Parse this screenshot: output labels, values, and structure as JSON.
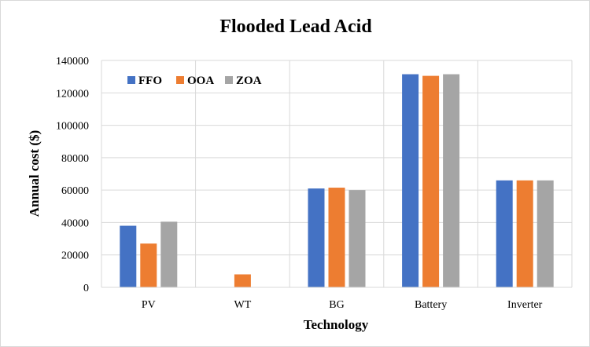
{
  "chart_data": {
    "type": "bar",
    "title": "Flooded Lead Acid",
    "xlabel": "Technology",
    "ylabel": "Annual cost ($)",
    "ylim": [
      0,
      140000
    ],
    "yticks": [
      0,
      20000,
      40000,
      60000,
      80000,
      100000,
      120000,
      140000
    ],
    "categories": [
      "PV",
      "WT",
      "BG",
      "Battery",
      "Inverter"
    ],
    "series": [
      {
        "name": "FFO",
        "color": "#4472c4",
        "values": [
          38000,
          0,
          61000,
          131500,
          66000
        ]
      },
      {
        "name": "OOA",
        "color": "#ed7d31",
        "values": [
          27000,
          8000,
          61500,
          130500,
          66000
        ]
      },
      {
        "name": "ZOA",
        "color": "#a5a5a5",
        "values": [
          40500,
          0,
          60000,
          131500,
          66000
        ]
      }
    ],
    "grid": true,
    "legend_position": "top-left"
  }
}
